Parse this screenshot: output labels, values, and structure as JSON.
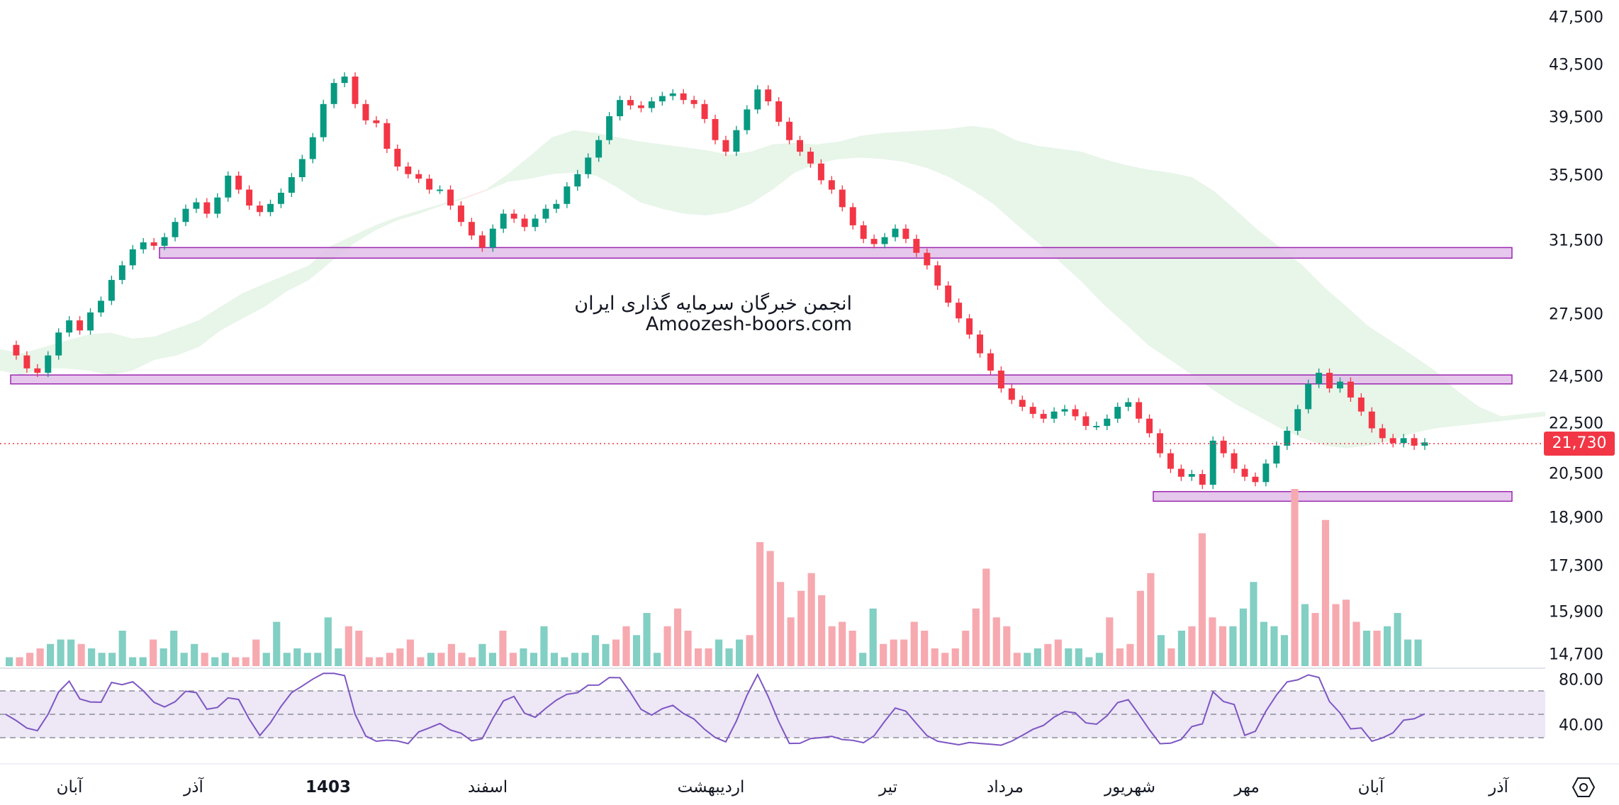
{
  "chart_data": {
    "type": "candlestick",
    "price_axis": {
      "ticks": [
        47500,
        43500,
        39500,
        35500,
        31500,
        27500,
        24500,
        22500,
        20500,
        18900,
        17300,
        15900,
        14700
      ],
      "labels": [
        "47,500",
        "43,500",
        "39,500",
        "35,500",
        "31,500",
        "27,500",
        "24,500",
        "22,500",
        "20,500",
        "18,900",
        "17,300",
        "15,900",
        "14,700"
      ],
      "scale": "log"
    },
    "last_price": {
      "value": 21730,
      "label": "21,730"
    },
    "x_axis_labels": [
      "آبان",
      "آذر",
      "1403",
      "اسفند",
      "اردیبهشت",
      "تیر",
      "مرداد",
      "شهریور",
      "مهر",
      "آبان",
      "آذر"
    ],
    "rsi": {
      "labels": [
        "80.00",
        "40.00"
      ],
      "upper": 70,
      "middle": 50,
      "lower": 30
    },
    "support_resistance_zones": [
      {
        "low": 30500,
        "high": 31100
      },
      {
        "low": 24200,
        "high": 24600
      },
      {
        "low": 19500,
        "high": 19850
      }
    ],
    "price_series": [
      26000,
      25500,
      24900,
      24700,
      25500,
      26600,
      27200,
      26700,
      27600,
      28200,
      29300,
      30100,
      31000,
      31400,
      31200,
      31700,
      32600,
      33400,
      33800,
      33100,
      34100,
      35500,
      34600,
      33600,
      33200,
      33700,
      34400,
      35400,
      36600,
      38100,
      40500,
      42100,
      42600,
      40500,
      39300,
      39100,
      37300,
      36100,
      35600,
      35300,
      34600,
      34600,
      33600,
      32600,
      31800,
      31100,
      32200,
      33100,
      32800,
      32300,
      32800,
      33400,
      33700,
      34800,
      35600,
      36700,
      37900,
      39600,
      40800,
      40400,
      40200,
      40700,
      41100,
      41300,
      40800,
      40500,
      39400,
      37900,
      37100,
      38600,
      40100,
      41600,
      40700,
      39200,
      37900,
      37100,
      36300,
      35200,
      34600,
      33500,
      32400,
      31600,
      31300,
      31700,
      32200,
      31600,
      30800,
      30100,
      29000,
      28100,
      27300,
      26500,
      25600,
      24800,
      24000,
      23500,
      23200,
      22900,
      22700,
      23000,
      23100,
      22800,
      22400,
      22400,
      22700,
      23200,
      23400,
      22700,
      22100,
      21300,
      20700,
      20400,
      20500,
      20100,
      21800,
      21300,
      20700,
      20400,
      20200,
      20900,
      21600,
      22200,
      23100,
      24200,
      24700,
      24000,
      24300,
      23600,
      23000,
      22300,
      21900,
      21700,
      21900,
      21600,
      21730
    ],
    "cloud_upper": [
      25800,
      25600,
      25900,
      26200,
      26500,
      26600,
      26300,
      26400,
      26800,
      27200,
      27900,
      28600,
      29100,
      29600,
      30100,
      31200,
      31800,
      32400,
      32900,
      33300,
      33700,
      34000,
      34600,
      35600,
      36800,
      38100,
      38600,
      38400,
      38100,
      37800,
      37600,
      37400,
      37200,
      36900,
      37100,
      37600,
      37700,
      37600,
      37800,
      38200,
      38400,
      38500,
      38600,
      38700,
      38900,
      38700,
      37900,
      37500,
      37300,
      37100,
      36600,
      36200,
      35900,
      35700,
      35400,
      34500,
      33300,
      32100,
      31100,
      30100,
      28900,
      27900,
      26900,
      26200,
      25500,
      24800,
      23900,
      23200,
      22800,
      22900,
      23000
    ],
    "cloud_lower": [
      24800,
      24600,
      24900,
      24900,
      24800,
      24600,
      24800,
      25300,
      25500,
      25900,
      26700,
      27300,
      27900,
      28700,
      29300,
      30300,
      31300,
      32100,
      32700,
      33100,
      33600,
      34100,
      34500,
      35100,
      35300,
      35600,
      35700,
      35500,
      34700,
      33800,
      33400,
      33100,
      33000,
      33200,
      33700,
      34600,
      35700,
      36300,
      36600,
      36700,
      36600,
      36400,
      36000,
      35400,
      34600,
      33700,
      32500,
      31400,
      30300,
      29200,
      28000,
      27000,
      26000,
      25300,
      24600,
      23900,
      23300,
      22800,
      22300,
      21900,
      21600,
      21500,
      21600,
      21800,
      22100,
      22300,
      22400,
      22500,
      22600,
      22700,
      22800
    ],
    "volume": [
      2,
      2,
      3,
      4,
      5,
      6,
      6,
      5,
      4,
      3,
      3,
      8,
      2,
      2,
      6,
      4,
      8,
      3,
      5,
      3,
      2,
      3,
      2,
      2,
      6,
      3,
      10,
      3,
      4,
      3,
      3,
      11,
      4,
      9,
      8,
      2,
      2,
      3,
      4,
      6,
      2,
      3,
      3,
      5,
      3,
      2,
      5,
      3,
      8,
      3,
      4,
      3,
      9,
      3,
      2,
      3,
      3,
      7,
      5,
      6,
      9,
      7,
      12,
      3,
      9,
      13,
      8,
      4,
      4,
      6,
      4,
      6,
      7,
      28,
      26,
      19,
      11,
      17,
      21,
      16,
      9,
      10,
      8,
      3,
      13,
      5,
      6,
      6,
      10,
      8,
      4,
      3,
      4,
      8,
      13,
      22,
      11,
      9,
      3,
      3,
      4,
      5,
      6,
      4,
      4,
      2,
      3,
      11,
      4,
      5,
      17,
      21,
      7,
      4,
      8,
      9,
      30,
      11,
      9,
      9,
      13,
      19,
      10,
      9,
      7,
      40,
      14,
      12,
      33,
      14,
      15,
      10,
      8,
      8,
      9,
      12,
      6,
      6
    ]
  },
  "watermark": {
    "line1": "انجمن خبرگان سرمایه گذاری ایران",
    "line2": "Amoozesh-boors.com"
  },
  "colors": {
    "up": "#089981",
    "down": "#f23645",
    "zone_fill": "#e1bee7",
    "zone_stroke": "#9c27b0",
    "cloud_up": "#e8f5e9",
    "cloud_down": "#fde9e9",
    "rsi_line": "#7e57c2",
    "rsi_band": "#ede7f6"
  }
}
